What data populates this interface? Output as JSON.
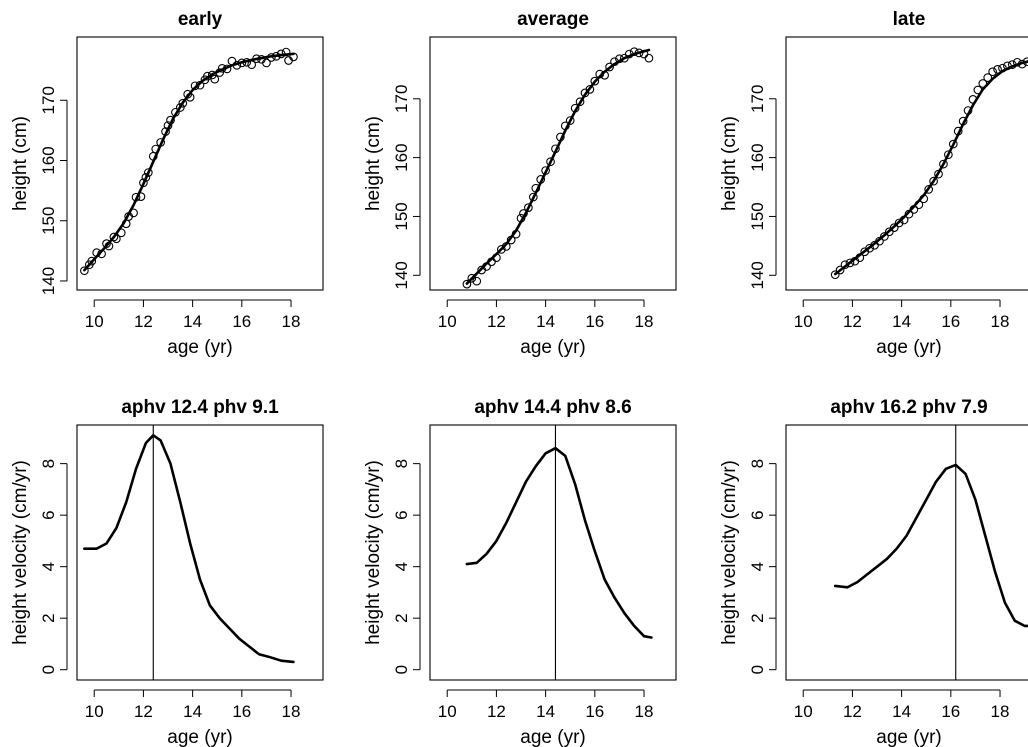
{
  "chart_data": [
    {
      "type": "scatter",
      "title": "early",
      "xlabel": "age (yr)",
      "ylabel": "height (cm)",
      "xlim": [
        9.3,
        19.3
      ],
      "ylim": [
        138.5,
        180.5
      ],
      "xticks": [
        "10",
        "12",
        "14",
        "16",
        "18"
      ],
      "yticks": [
        "140",
        "150",
        "160",
        "170"
      ],
      "grid": false,
      "series": [
        {
          "kind": "points",
          "x": [
            9.6,
            9.8,
            9.9,
            10.1,
            10.3,
            10.5,
            10.6,
            10.8,
            10.9,
            11.1,
            11.3,
            11.4,
            11.6,
            11.7,
            11.9,
            12.0,
            12.1,
            12.2,
            12.4,
            12.5,
            12.7,
            12.9,
            13.0,
            13.1,
            13.3,
            13.5,
            13.6,
            13.8,
            13.9,
            14.1,
            14.3,
            14.5,
            14.6,
            14.8,
            14.9,
            15.1,
            15.2,
            15.4,
            15.6,
            15.8,
            16.0,
            16.2,
            16.4,
            16.6,
            16.8,
            17.0,
            17.2,
            17.4,
            17.6,
            17.8,
            17.9,
            18.1
          ],
          "y": [
            141.7,
            142.7,
            143.3,
            144.7,
            144.5,
            146.2,
            145.8,
            147.3,
            147.0,
            148.0,
            149.5,
            150.7,
            151.3,
            153.9,
            154.0,
            156.3,
            157.2,
            158.0,
            160.7,
            161.9,
            163.0,
            164.8,
            165.8,
            166.7,
            168.0,
            168.8,
            169.5,
            171.0,
            170.5,
            172.4,
            172.5,
            173.4,
            174.0,
            174.2,
            173.5,
            174.6,
            175.3,
            175.2,
            176.5,
            175.8,
            176.2,
            176.3,
            175.9,
            176.9,
            176.8,
            176.2,
            177.1,
            177.3,
            177.7,
            178.0,
            176.6,
            177.2
          ]
        },
        {
          "kind": "line",
          "x": [
            9.6,
            10.0,
            10.4,
            10.8,
            11.2,
            11.6,
            12.0,
            12.4,
            12.8,
            13.2,
            13.6,
            14.0,
            14.4,
            14.8,
            15.2,
            15.6,
            16.0,
            16.4,
            16.8,
            17.2,
            17.6,
            18.1
          ],
          "y": [
            141.8,
            143.6,
            145.4,
            147.3,
            149.6,
            152.6,
            156.1,
            159.8,
            163.5,
            166.9,
            169.6,
            171.7,
            173.2,
            174.3,
            175.1,
            175.8,
            176.3,
            176.7,
            177.0,
            177.3,
            177.5,
            177.7
          ]
        }
      ]
    },
    {
      "type": "scatter",
      "title": "average",
      "xlabel": "age (yr)",
      "ylabel": "height (cm)",
      "xlim": [
        9.3,
        19.3
      ],
      "ylim": [
        137.5,
        180.5
      ],
      "xticks": [
        "10",
        "12",
        "14",
        "16",
        "18"
      ],
      "yticks": [
        "140",
        "150",
        "160",
        "170"
      ],
      "grid": false,
      "series": [
        {
          "kind": "points",
          "x": [
            10.8,
            11.0,
            11.2,
            11.4,
            11.6,
            11.8,
            12.0,
            12.2,
            12.4,
            12.6,
            12.8,
            13.0,
            13.1,
            13.3,
            13.5,
            13.6,
            13.8,
            14.0,
            14.2,
            14.4,
            14.6,
            14.8,
            15.0,
            15.2,
            15.4,
            15.6,
            15.8,
            16.0,
            16.2,
            16.4,
            16.6,
            16.8,
            17.0,
            17.2,
            17.4,
            17.6,
            17.8,
            18.0,
            18.2
          ],
          "y": [
            138.5,
            139.5,
            139.0,
            140.9,
            141.5,
            142.3,
            143.0,
            144.4,
            144.9,
            146.0,
            147.0,
            149.7,
            150.5,
            151.5,
            153.3,
            154.8,
            156.3,
            157.8,
            159.3,
            161.5,
            163.5,
            165.4,
            166.3,
            168.4,
            169.5,
            171.0,
            171.6,
            173.0,
            174.2,
            174.0,
            175.4,
            176.3,
            176.8,
            176.9,
            177.6,
            178.0,
            177.8,
            177.6,
            176.9
          ]
        },
        {
          "kind": "line",
          "x": [
            10.8,
            11.2,
            11.6,
            12.0,
            12.4,
            12.8,
            13.2,
            13.6,
            14.0,
            14.4,
            14.8,
            15.2,
            15.6,
            16.0,
            16.4,
            16.8,
            17.2,
            17.6,
            18.2
          ],
          "y": [
            138.6,
            140.3,
            142.0,
            143.6,
            145.3,
            147.6,
            150.6,
            154.0,
            157.5,
            161.0,
            164.6,
            167.9,
            170.7,
            172.9,
            174.6,
            175.9,
            176.9,
            177.6,
            178.3
          ]
        }
      ]
    },
    {
      "type": "scatter",
      "title": "late",
      "xlabel": "age (yr)",
      "ylabel": "height (cm)",
      "xlim": [
        9.3,
        19.3
      ],
      "ylim": [
        137.5,
        180.5
      ],
      "xticks": [
        "10",
        "12",
        "14",
        "16",
        "18"
      ],
      "yticks": [
        "140",
        "150",
        "160",
        "170"
      ],
      "grid": false,
      "series": [
        {
          "kind": "points",
          "x": [
            11.3,
            11.5,
            11.7,
            11.9,
            12.1,
            12.3,
            12.5,
            12.7,
            12.9,
            13.1,
            13.3,
            13.5,
            13.7,
            13.9,
            14.1,
            14.3,
            14.5,
            14.7,
            14.9,
            15.1,
            15.3,
            15.5,
            15.7,
            15.9,
            16.1,
            16.3,
            16.5,
            16.7,
            16.9,
            17.1,
            17.3,
            17.5,
            17.7,
            17.9,
            18.1,
            18.3,
            18.5,
            18.7,
            18.9,
            19.1
          ],
          "y": [
            140.1,
            140.9,
            141.8,
            142.1,
            142.4,
            143.0,
            144.0,
            144.6,
            145.1,
            145.8,
            146.6,
            147.4,
            148.1,
            148.9,
            149.4,
            150.4,
            151.2,
            152.0,
            153.0,
            154.6,
            156.0,
            157.2,
            158.9,
            160.5,
            162.3,
            164.5,
            166.2,
            168.0,
            169.9,
            171.5,
            172.6,
            173.6,
            174.6,
            175.0,
            175.2,
            175.6,
            175.8,
            176.2,
            175.9,
            176.3
          ]
        },
        {
          "kind": "line",
          "x": [
            11.3,
            11.7,
            12.1,
            12.5,
            12.9,
            13.3,
            13.7,
            14.1,
            14.5,
            14.9,
            15.3,
            15.7,
            16.1,
            16.5,
            16.9,
            17.3,
            17.7,
            18.1,
            18.5,
            18.9,
            19.3
          ],
          "y": [
            140.2,
            141.5,
            142.8,
            144.1,
            145.4,
            146.8,
            148.3,
            149.9,
            151.7,
            153.6,
            156.0,
            158.9,
            162.2,
            165.7,
            168.9,
            171.6,
            173.4,
            174.7,
            175.5,
            176.1,
            176.5
          ]
        }
      ]
    },
    {
      "type": "line",
      "title": "aphv 12.4 phv 9.1",
      "xlabel": "age (yr)",
      "ylabel": "height velocity (cm/yr)",
      "xlim": [
        9.3,
        19.3
      ],
      "ylim": [
        -0.4,
        9.5
      ],
      "xticks": [
        "10",
        "12",
        "14",
        "16",
        "18"
      ],
      "yticks": [
        "0",
        "2",
        "4",
        "6",
        "8"
      ],
      "grid": false,
      "vline_x": 12.4,
      "series": [
        {
          "kind": "line",
          "x": [
            9.6,
            10.1,
            10.5,
            10.9,
            11.3,
            11.7,
            12.1,
            12.4,
            12.7,
            13.1,
            13.5,
            13.9,
            14.3,
            14.7,
            15.1,
            15.5,
            15.9,
            16.3,
            16.7,
            17.1,
            17.6,
            18.1
          ],
          "y": [
            4.7,
            4.7,
            4.9,
            5.5,
            6.5,
            7.8,
            8.8,
            9.1,
            8.9,
            8.0,
            6.5,
            4.9,
            3.5,
            2.5,
            2.0,
            1.6,
            1.2,
            0.9,
            0.6,
            0.5,
            0.35,
            0.3
          ]
        }
      ]
    },
    {
      "type": "line",
      "title": "aphv 14.4 phv 8.6",
      "xlabel": "age (yr)",
      "ylabel": "height velocity (cm/yr)",
      "xlim": [
        9.3,
        19.3
      ],
      "ylim": [
        -0.4,
        9.5
      ],
      "xticks": [
        "10",
        "12",
        "14",
        "16",
        "18"
      ],
      "yticks": [
        "0",
        "2",
        "4",
        "6",
        "8"
      ],
      "grid": false,
      "vline_x": 14.4,
      "series": [
        {
          "kind": "line",
          "x": [
            10.8,
            11.2,
            11.6,
            12.0,
            12.4,
            12.8,
            13.2,
            13.6,
            14.0,
            14.4,
            14.8,
            15.2,
            15.6,
            16.0,
            16.4,
            16.8,
            17.2,
            17.6,
            18.0,
            18.3
          ],
          "y": [
            4.1,
            4.15,
            4.5,
            5.0,
            5.7,
            6.5,
            7.3,
            7.9,
            8.4,
            8.6,
            8.3,
            7.2,
            5.8,
            4.6,
            3.5,
            2.8,
            2.2,
            1.7,
            1.3,
            1.25
          ]
        }
      ]
    },
    {
      "type": "line",
      "title": "aphv 16.2 phv 7.9",
      "xlabel": "age (yr)",
      "ylabel": "height velocity (cm/yr)",
      "xlim": [
        9.3,
        19.3
      ],
      "ylim": [
        -0.4,
        9.5
      ],
      "xticks": [
        "10",
        "12",
        "14",
        "16",
        "18"
      ],
      "yticks": [
        "0",
        "2",
        "4",
        "6",
        "8"
      ],
      "grid": false,
      "vline_x": 16.2,
      "series": [
        {
          "kind": "line",
          "x": [
            11.3,
            11.8,
            12.2,
            12.6,
            13.0,
            13.4,
            13.8,
            14.2,
            14.6,
            15.0,
            15.4,
            15.8,
            16.2,
            16.6,
            17.0,
            17.4,
            17.8,
            18.2,
            18.6,
            19.0,
            19.3
          ],
          "y": [
            3.25,
            3.2,
            3.4,
            3.7,
            4.0,
            4.3,
            4.7,
            5.2,
            5.9,
            6.6,
            7.3,
            7.8,
            7.95,
            7.6,
            6.6,
            5.2,
            3.8,
            2.6,
            1.9,
            1.7,
            1.7
          ]
        }
      ]
    }
  ]
}
